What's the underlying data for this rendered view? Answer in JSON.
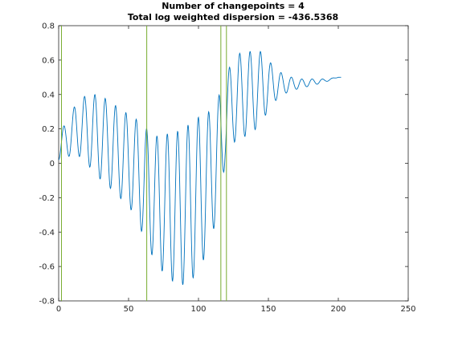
{
  "chart_data": {
    "type": "line",
    "title": "Number of changepoints = 4",
    "subtitle": "Total log weighted dispersion = -436.5368",
    "xlabel": "",
    "ylabel": "",
    "xlim": [
      0,
      250
    ],
    "ylim": [
      -0.8,
      0.8
    ],
    "xticks": [
      0,
      50,
      100,
      150,
      200,
      250
    ],
    "yticks": [
      -0.8,
      -0.6,
      -0.4,
      -0.2,
      0,
      0.2,
      0.4,
      0.6,
      0.8
    ],
    "x_tick_labels": [
      "0",
      "50",
      "100",
      "150",
      "200",
      "250"
    ],
    "y_tick_labels": [
      "-0.8",
      "-0.6",
      "-0.4",
      "-0.2",
      "0",
      "0.2",
      "0.4",
      "0.6",
      "0.8"
    ],
    "grid": false,
    "series_color": "#0072BD",
    "changepoint_color": "#77AC30",
    "changepoints": [
      2,
      63,
      116,
      120
    ],
    "signal_length": 202,
    "oscillation_period": 7.4,
    "envelope": {
      "x": [
        0,
        5,
        12,
        20,
        28,
        35,
        45,
        55,
        63,
        72,
        80,
        88,
        95,
        102,
        110,
        116,
        119,
        125,
        132,
        140,
        146,
        152,
        160,
        170,
        180,
        190,
        200
      ],
      "center": [
        0.1,
        0.13,
        0.2,
        0.2,
        0.16,
        0.12,
        0.05,
        -0.02,
        -0.14,
        -0.23,
        -0.25,
        -0.26,
        -0.22,
        -0.16,
        -0.05,
        0.1,
        0.25,
        0.37,
        0.4,
        0.42,
        0.45,
        0.46,
        0.46,
        0.46,
        0.47,
        0.48,
        0.5
      ],
      "amplitude": [
        0.08,
        0.1,
        0.14,
        0.2,
        0.24,
        0.25,
        0.26,
        0.28,
        0.34,
        0.38,
        0.43,
        0.45,
        0.46,
        0.44,
        0.36,
        0.32,
        0.24,
        0.25,
        0.25,
        0.23,
        0.2,
        0.12,
        0.06,
        0.03,
        0.02,
        0.01,
        0.0
      ]
    }
  }
}
